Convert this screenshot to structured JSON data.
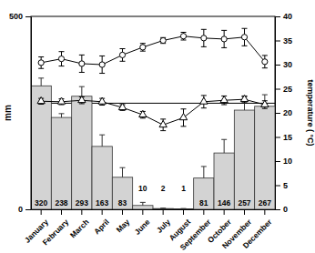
{
  "chart_data": {
    "type": "bar",
    "categories": [
      "January",
      "February",
      "March",
      "April",
      "May",
      "June",
      "July",
      "August",
      "September",
      "October",
      "November",
      "December"
    ],
    "y_label": "mm",
    "y2_label": "temperature ( °C)",
    "ylim": [
      0,
      500
    ],
    "yticks": [
      0,
      500
    ],
    "y2lim": [
      0,
      40
    ],
    "y2ticks": [
      0,
      5,
      10,
      15,
      20,
      25,
      30,
      35,
      40
    ],
    "data_labels": true,
    "series": [
      {
        "type": "bar",
        "color": "#d3d3d3",
        "values": [
          320,
          238,
          293,
          163,
          83,
          10,
          2,
          1,
          81,
          146,
          257,
          267
        ],
        "errors": [
          20,
          10,
          25,
          30,
          25,
          8,
          1,
          1,
          30,
          35,
          35,
          30
        ]
      },
      {
        "type": "line",
        "axis": "y2",
        "marker": "circle",
        "color": "#000000",
        "values": [
          30.4,
          31.2,
          30.2,
          30.0,
          32.0,
          33.6,
          35.0,
          35.9,
          35.5,
          35.3,
          35.7,
          30.6
        ],
        "errors": [
          1.2,
          1.5,
          1.8,
          1.8,
          1.3,
          0.8,
          0.6,
          0.8,
          1.8,
          1.8,
          1.8,
          1.3
        ]
      },
      {
        "type": "line",
        "axis": "y2",
        "marker": "triangle",
        "color": "#000000",
        "values": [
          22.4,
          22.3,
          22.6,
          22.3,
          21.1,
          19.6,
          17.5,
          19.0,
          22.3,
          22.6,
          22.8,
          21.7
        ],
        "errors": [
          0.6,
          0.6,
          0.7,
          0.7,
          0.6,
          0.7,
          1.2,
          1.8,
          1.3,
          0.9,
          0.7,
          0.8
        ]
      }
    ],
    "reference_lines": [
      {
        "value": 22,
        "axis": "y2"
      }
    ]
  }
}
